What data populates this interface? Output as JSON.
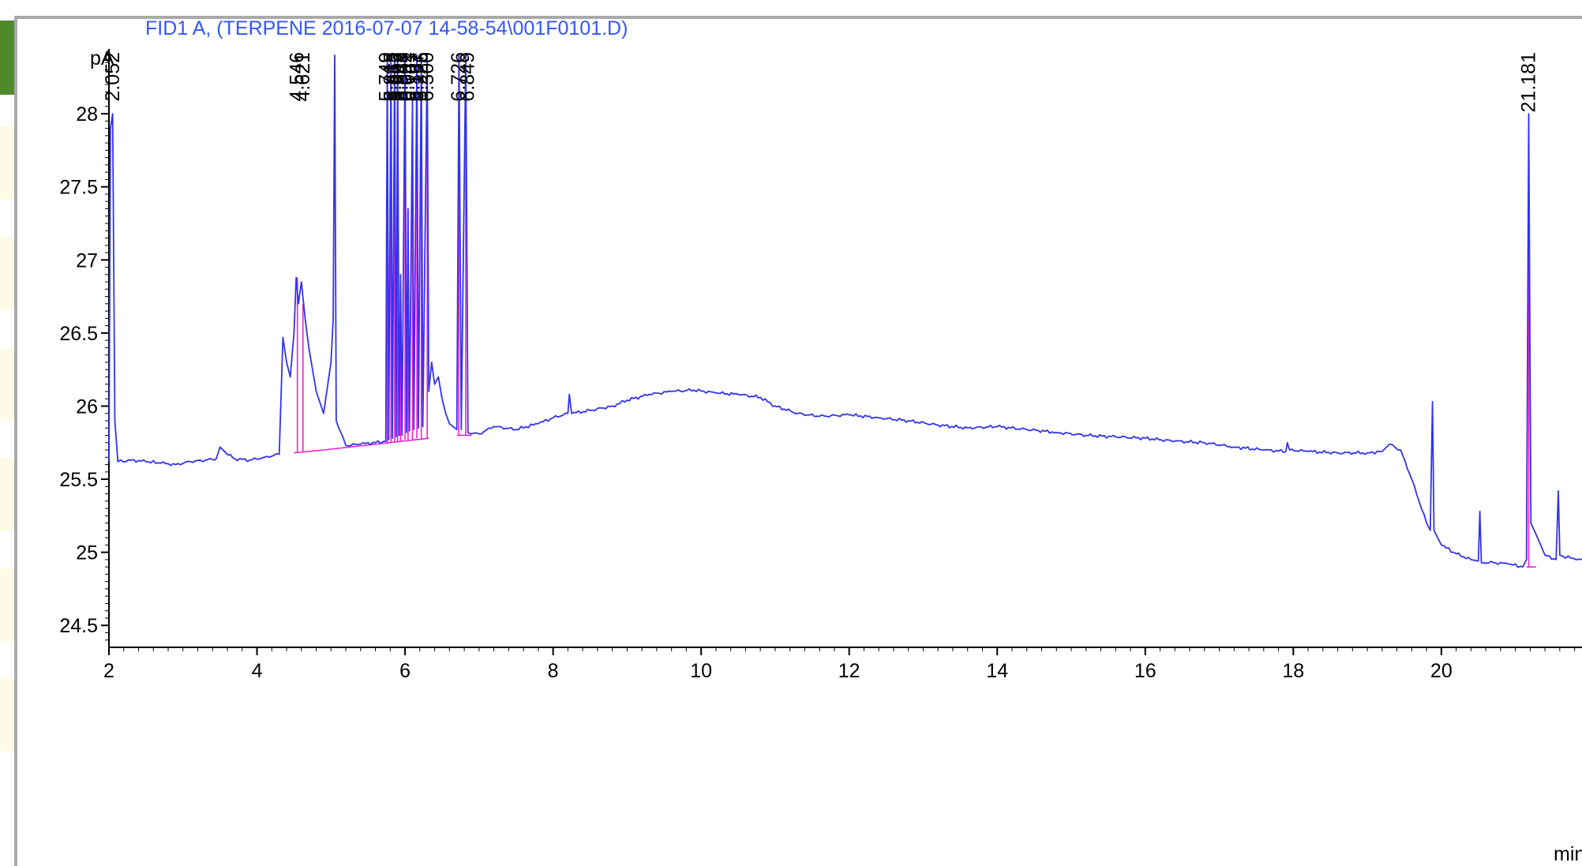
{
  "chart_data": {
    "type": "line",
    "title": "FID1 A,  (TERPENE 2016-07-07 14-58-54\\001F0101.D)",
    "ylabel": "pA",
    "xlabel": "min",
    "xlim": [
      2,
      21.9
    ],
    "ylim": [
      24.35,
      28.4
    ],
    "x_ticks": [
      2,
      4,
      6,
      8,
      10,
      12,
      14,
      16,
      18,
      20
    ],
    "y_ticks": [
      24.5,
      25,
      25.5,
      26,
      26.5,
      27,
      27.5,
      28
    ],
    "colors": {
      "signal": "#3333ee",
      "baseline": "#ee22cc",
      "title": "#3355ff",
      "axis": "#000000",
      "accent": "#4e8a2a",
      "cell": "#fdfbe6"
    },
    "series": [
      {
        "points": [
          [
            2.0,
            25.62
          ],
          [
            2.02,
            27.9
          ],
          [
            2.05,
            28.0
          ],
          [
            2.08,
            25.9
          ],
          [
            2.12,
            25.62
          ],
          [
            2.3,
            25.63
          ],
          [
            2.5,
            25.62
          ],
          [
            2.7,
            25.61
          ],
          [
            2.9,
            25.6
          ],
          [
            3.1,
            25.62
          ],
          [
            3.3,
            25.63
          ],
          [
            3.45,
            25.64
          ],
          [
            3.5,
            25.72
          ],
          [
            3.58,
            25.68
          ],
          [
            3.7,
            25.64
          ],
          [
            3.9,
            25.63
          ],
          [
            4.1,
            25.65
          ],
          [
            4.3,
            25.67
          ],
          [
            4.35,
            26.47
          ],
          [
            4.4,
            26.3
          ],
          [
            4.45,
            26.2
          ],
          [
            4.5,
            26.5
          ],
          [
            4.53,
            26.88
          ],
          [
            4.56,
            26.7
          ],
          [
            4.6,
            26.85
          ],
          [
            4.65,
            26.6
          ],
          [
            4.7,
            26.4
          ],
          [
            4.8,
            26.1
          ],
          [
            4.9,
            25.95
          ],
          [
            5.0,
            26.3
          ],
          [
            5.03,
            26.6
          ],
          [
            5.05,
            28.4
          ],
          [
            5.07,
            25.9
          ],
          [
            5.2,
            25.73
          ],
          [
            5.4,
            25.74
          ],
          [
            5.6,
            25.75
          ],
          [
            5.74,
            25.76
          ],
          [
            5.76,
            28.4
          ],
          [
            5.78,
            25.77
          ],
          [
            5.81,
            28.4
          ],
          [
            5.83,
            25.78
          ],
          [
            5.86,
            28.4
          ],
          [
            5.88,
            25.79
          ],
          [
            5.9,
            28.4
          ],
          [
            5.92,
            25.8
          ],
          [
            5.94,
            26.9
          ],
          [
            5.96,
            25.8
          ],
          [
            6.0,
            28.4
          ],
          [
            6.02,
            25.82
          ],
          [
            6.04,
            27.35
          ],
          [
            6.06,
            25.83
          ],
          [
            6.1,
            28.1
          ],
          [
            6.12,
            25.84
          ],
          [
            6.16,
            28.4
          ],
          [
            6.18,
            25.85
          ],
          [
            6.22,
            28.4
          ],
          [
            6.24,
            25.86
          ],
          [
            6.3,
            28.4
          ],
          [
            6.32,
            26.1
          ],
          [
            6.36,
            26.3
          ],
          [
            6.4,
            26.15
          ],
          [
            6.45,
            26.2
          ],
          [
            6.5,
            26.05
          ],
          [
            6.55,
            25.95
          ],
          [
            6.6,
            25.88
          ],
          [
            6.7,
            25.84
          ],
          [
            6.73,
            28.4
          ],
          [
            6.76,
            25.84
          ],
          [
            6.82,
            28.4
          ],
          [
            6.85,
            25.82
          ],
          [
            7.0,
            25.81
          ],
          [
            7.2,
            25.86
          ],
          [
            7.5,
            25.84
          ],
          [
            7.8,
            25.88
          ],
          [
            8.0,
            25.92
          ],
          [
            8.2,
            25.95
          ],
          [
            8.22,
            26.08
          ],
          [
            8.25,
            25.95
          ],
          [
            8.5,
            25.97
          ],
          [
            8.8,
            26.0
          ],
          [
            9.0,
            26.04
          ],
          [
            9.3,
            26.08
          ],
          [
            9.6,
            26.1
          ],
          [
            9.9,
            26.11
          ],
          [
            10.2,
            26.09
          ],
          [
            10.5,
            26.08
          ],
          [
            10.8,
            26.06
          ],
          [
            11.0,
            26.0
          ],
          [
            11.3,
            25.95
          ],
          [
            11.6,
            25.93
          ],
          [
            12.0,
            25.94
          ],
          [
            12.4,
            25.92
          ],
          [
            12.8,
            25.9
          ],
          [
            13.2,
            25.87
          ],
          [
            13.6,
            25.85
          ],
          [
            14.0,
            25.86
          ],
          [
            14.4,
            25.84
          ],
          [
            14.8,
            25.82
          ],
          [
            15.2,
            25.8
          ],
          [
            15.6,
            25.79
          ],
          [
            16.0,
            25.78
          ],
          [
            16.4,
            25.76
          ],
          [
            16.8,
            25.75
          ],
          [
            17.2,
            25.72
          ],
          [
            17.6,
            25.7
          ],
          [
            17.9,
            25.69
          ],
          [
            17.92,
            25.75
          ],
          [
            17.95,
            25.7
          ],
          [
            18.2,
            25.69
          ],
          [
            18.6,
            25.68
          ],
          [
            19.0,
            25.68
          ],
          [
            19.2,
            25.69
          ],
          [
            19.3,
            25.74
          ],
          [
            19.45,
            25.7
          ],
          [
            19.6,
            25.5
          ],
          [
            19.8,
            25.2
          ],
          [
            19.85,
            25.15
          ],
          [
            19.88,
            26.03
          ],
          [
            19.9,
            25.15
          ],
          [
            20.0,
            25.05
          ],
          [
            20.2,
            24.99
          ],
          [
            20.4,
            24.95
          ],
          [
            20.5,
            24.94
          ],
          [
            20.52,
            25.28
          ],
          [
            20.54,
            24.93
          ],
          [
            20.7,
            24.93
          ],
          [
            20.9,
            24.92
          ],
          [
            21.1,
            24.9
          ],
          [
            21.15,
            24.95
          ],
          [
            21.18,
            28.0
          ],
          [
            21.21,
            25.2
          ],
          [
            21.3,
            25.1
          ],
          [
            21.4,
            24.98
          ],
          [
            21.55,
            24.95
          ],
          [
            21.58,
            25.42
          ],
          [
            21.6,
            24.98
          ],
          [
            21.75,
            24.96
          ],
          [
            21.9,
            24.95
          ]
        ]
      }
    ],
    "baselines": [
      [
        [
          4.5,
          25.68
        ],
        [
          4.9,
          25.7
        ]
      ],
      [
        [
          4.9,
          25.7
        ],
        [
          6.32,
          25.78
        ]
      ],
      [
        [
          6.7,
          25.8
        ],
        [
          6.9,
          25.8
        ]
      ],
      [
        [
          21.15,
          24.9
        ],
        [
          21.28,
          24.9
        ]
      ]
    ],
    "peak_drops": [
      [
        4.546,
        25.68,
        26.88
      ],
      [
        4.621,
        25.69,
        26.7
      ],
      [
        5.76,
        25.74,
        28.4
      ],
      [
        5.81,
        25.75,
        28.4
      ],
      [
        5.86,
        25.75,
        28.4
      ],
      [
        5.9,
        25.76,
        28.4
      ],
      [
        5.94,
        25.76,
        26.9
      ],
      [
        6.0,
        25.77,
        28.4
      ],
      [
        6.041,
        25.77,
        27.35
      ],
      [
        6.1,
        25.77,
        28.1
      ],
      [
        6.16,
        25.78,
        28.4
      ],
      [
        6.22,
        25.78,
        28.4
      ],
      [
        6.3,
        25.78,
        28.4
      ],
      [
        6.726,
        25.8,
        28.4
      ],
      [
        6.82,
        25.8,
        28.4
      ],
      [
        21.181,
        24.9,
        28.0
      ]
    ],
    "peak_labels": [
      {
        "x": 2.052,
        "label": "2.052"
      },
      {
        "x": 4.546,
        "label": "4.546"
      },
      {
        "x": 4.621,
        "label": "4.621"
      },
      {
        "x": 5.749,
        "label": "5.749"
      },
      {
        "x": 5.81,
        "label": "5.815"
      },
      {
        "x": 5.86,
        "label": "5.863"
      },
      {
        "x": 5.905,
        "label": "5.903"
      },
      {
        "x": 5.95,
        "label": "5.948"
      },
      {
        "x": 6.005,
        "label": "6.002"
      },
      {
        "x": 6.041,
        "label": "6.041"
      },
      {
        "x": 6.11,
        "label": "6.107"
      },
      {
        "x": 6.165,
        "label": "6.167"
      },
      {
        "x": 6.22,
        "label": "6.226"
      },
      {
        "x": 6.3,
        "label": "6.300"
      },
      {
        "x": 6.726,
        "label": "6.726"
      },
      {
        "x": 6.849,
        "label": "6.849"
      },
      {
        "x": 21.181,
        "label": "21.181"
      }
    ],
    "grid": false,
    "legend": "none"
  }
}
